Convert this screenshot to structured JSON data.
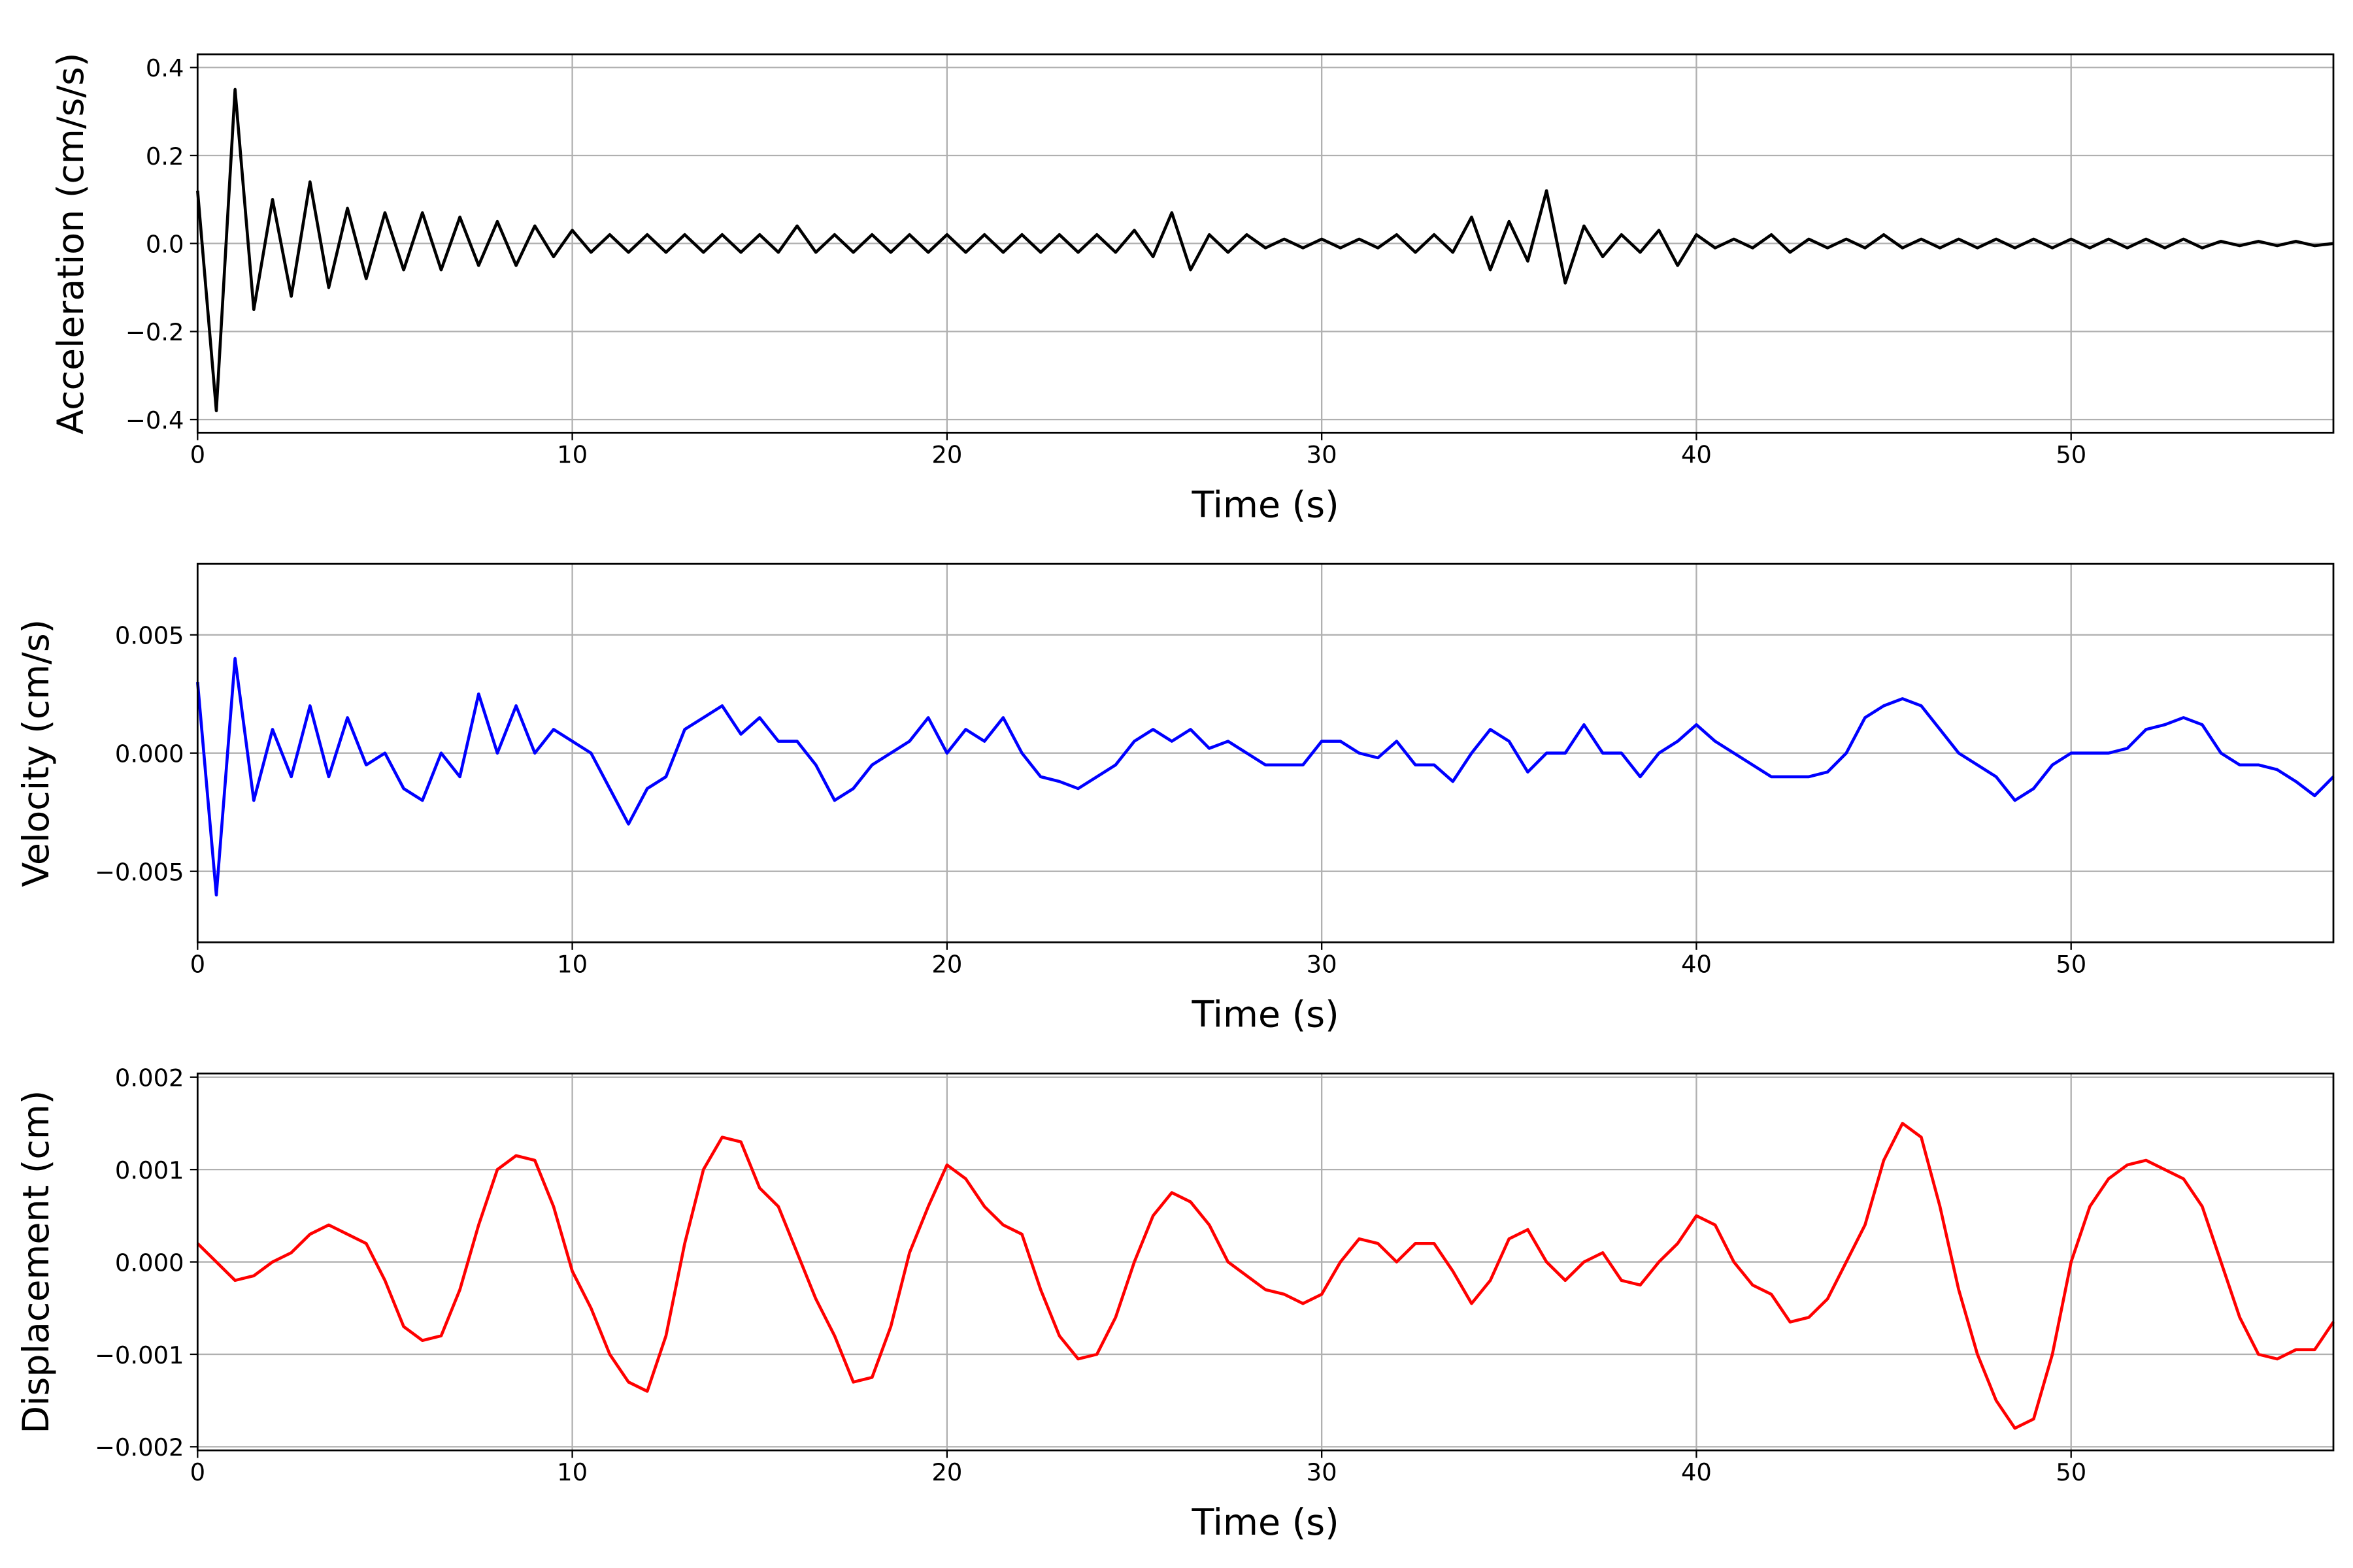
{
  "chart_data": [
    {
      "type": "line",
      "xlabel": "Time (s)",
      "ylabel": "Acceleration (cm/s/s)",
      "color": "#000000",
      "grid": true,
      "xlim": [
        0,
        57
      ],
      "xticks": [
        0,
        10,
        20,
        30,
        40,
        50
      ],
      "ylim": [
        -0.43,
        0.43
      ],
      "yticks": [
        {
          "value": 0.4,
          "label": "0.4"
        },
        {
          "value": 0.2,
          "label": "0.2"
        },
        {
          "value": 0,
          "label": "0.0"
        },
        {
          "value": -0.2,
          "label": "−0.2"
        },
        {
          "value": -0.4,
          "label": "−0.4"
        }
      ],
      "x": [
        0,
        0.5,
        1,
        1.5,
        2,
        2.5,
        3,
        3.5,
        4,
        4.5,
        5,
        5.5,
        6,
        6.5,
        7,
        7.5,
        8,
        8.5,
        9,
        9.5,
        10,
        10.5,
        11,
        11.5,
        12,
        12.5,
        13,
        13.5,
        14,
        14.5,
        15,
        15.5,
        16,
        16.5,
        17,
        17.5,
        18,
        18.5,
        19,
        19.5,
        20,
        20.5,
        21,
        21.5,
        22,
        22.5,
        23,
        23.5,
        24,
        24.5,
        25,
        25.5,
        26,
        26.5,
        27,
        27.5,
        28,
        28.5,
        29,
        29.5,
        30,
        30.5,
        31,
        31.5,
        32,
        32.5,
        33,
        33.5,
        34,
        34.5,
        35,
        35.5,
        36,
        36.5,
        37,
        37.5,
        38,
        38.5,
        39,
        39.5,
        40,
        40.5,
        41,
        41.5,
        42,
        42.5,
        43,
        43.5,
        44,
        44.5,
        45,
        45.5,
        46,
        46.5,
        47,
        47.5,
        48,
        48.5,
        49,
        49.5,
        50,
        50.5,
        51,
        51.5,
        52,
        52.5,
        53,
        53.5,
        54,
        54.5,
        55,
        55.5,
        56,
        56.5,
        57
      ],
      "values": [
        0.12,
        -0.38,
        0.35,
        -0.15,
        0.1,
        -0.12,
        0.14,
        -0.1,
        0.08,
        -0.08,
        0.07,
        -0.06,
        0.07,
        -0.06,
        0.06,
        -0.05,
        0.05,
        -0.05,
        0.04,
        -0.03,
        0.03,
        -0.02,
        0.02,
        -0.02,
        0.02,
        -0.02,
        0.02,
        -0.02,
        0.02,
        -0.02,
        0.02,
        -0.02,
        0.04,
        -0.02,
        0.02,
        -0.02,
        0.02,
        -0.02,
        0.02,
        -0.02,
        0.02,
        -0.02,
        0.02,
        -0.02,
        0.02,
        -0.02,
        0.02,
        -0.02,
        0.02,
        -0.02,
        0.03,
        -0.03,
        0.07,
        -0.06,
        0.02,
        -0.02,
        0.02,
        -0.01,
        0.01,
        -0.01,
        0.01,
        -0.01,
        0.01,
        -0.01,
        0.02,
        -0.02,
        0.02,
        -0.02,
        0.06,
        -0.06,
        0.05,
        -0.04,
        0.12,
        -0.09,
        0.04,
        -0.03,
        0.02,
        -0.02,
        0.03,
        -0.05,
        0.02,
        -0.01,
        0.01,
        -0.01,
        0.02,
        -0.02,
        0.01,
        -0.01,
        0.01,
        -0.01,
        0.02,
        -0.01,
        0.01,
        -0.01,
        0.01,
        -0.01,
        0.01,
        -0.01,
        0.01,
        -0.01,
        0.01,
        -0.01,
        0.01,
        -0.01,
        0.01,
        -0.01,
        0.01,
        -0.01,
        0.005,
        -0.005,
        0.005,
        -0.005,
        0.005,
        -0.005,
        0
      ]
    },
    {
      "type": "line",
      "xlabel": "Time (s)",
      "ylabel": "Velocity (cm/s)",
      "color": "#0000ff",
      "grid": true,
      "xlim": [
        0,
        57
      ],
      "xticks": [
        0,
        10,
        20,
        30,
        40,
        50
      ],
      "ylim": [
        -0.008,
        0.008
      ],
      "yticks": [
        {
          "value": 0.005,
          "label": "0.005"
        },
        {
          "value": 0,
          "label": "0.000"
        },
        {
          "value": -0.005,
          "label": "−0.005"
        }
      ],
      "x": [
        0,
        0.5,
        1,
        1.5,
        2,
        2.5,
        3,
        3.5,
        4,
        4.5,
        5,
        5.5,
        6,
        6.5,
        7,
        7.5,
        8,
        8.5,
        9,
        9.5,
        10,
        10.5,
        11,
        11.5,
        12,
        12.5,
        13,
        13.5,
        14,
        14.5,
        15,
        15.5,
        16,
        16.5,
        17,
        17.5,
        18,
        18.5,
        19,
        19.5,
        20,
        20.5,
        21,
        21.5,
        22,
        22.5,
        23,
        23.5,
        24,
        24.5,
        25,
        25.5,
        26,
        26.5,
        27,
        27.5,
        28,
        28.5,
        29,
        29.5,
        30,
        30.5,
        31,
        31.5,
        32,
        32.5,
        33,
        33.5,
        34,
        34.5,
        35,
        35.5,
        36,
        36.5,
        37,
        37.5,
        38,
        38.5,
        39,
        39.5,
        40,
        40.5,
        41,
        41.5,
        42,
        42.5,
        43,
        43.5,
        44,
        44.5,
        45,
        45.5,
        46,
        46.5,
        47,
        47.5,
        48,
        48.5,
        49,
        49.5,
        50,
        50.5,
        51,
        51.5,
        52,
        52.5,
        53,
        53.5,
        54,
        54.5,
        55,
        55.5,
        56,
        56.5,
        57
      ],
      "values": [
        0.003,
        -0.006,
        0.004,
        -0.002,
        0.001,
        -0.001,
        0.002,
        -0.001,
        0.0015,
        -0.0005,
        0,
        -0.0015,
        -0.002,
        0,
        -0.001,
        0.0025,
        0,
        0.002,
        0,
        0.001,
        0.0005,
        0,
        -0.0015,
        -0.003,
        -0.0015,
        -0.001,
        0.001,
        0.0015,
        0.002,
        0.0008,
        0.0015,
        0.0005,
        0.0005,
        -0.0005,
        -0.002,
        -0.0015,
        -0.0005,
        0,
        0.0005,
        0.0015,
        0,
        0.001,
        0.0005,
        0.0015,
        0,
        -0.001,
        -0.0012,
        -0.0015,
        -0.001,
        -0.0005,
        0.0005,
        0.001,
        0.0005,
        0.001,
        0.0002,
        0.0005,
        0,
        -0.0005,
        -0.0005,
        -0.0005,
        0.0005,
        0.0005,
        0,
        -0.0002,
        0.0005,
        -0.0005,
        -0.0005,
        -0.0012,
        0,
        0.001,
        0.0005,
        -0.0008,
        0,
        0,
        0.0012,
        0,
        0,
        -0.001,
        0,
        0.0005,
        0.0012,
        0.0005,
        0,
        -0.0005,
        -0.001,
        -0.001,
        -0.001,
        -0.0008,
        0,
        0.0015,
        0.002,
        0.0023,
        0.002,
        0.001,
        0,
        -0.0005,
        -0.001,
        -0.002,
        -0.0015,
        -0.0005,
        0,
        0,
        0,
        0.0002,
        0.001,
        0.0012,
        0.0015,
        0.0012,
        0,
        -0.0005,
        -0.0005,
        -0.0007,
        -0.0012,
        -0.0018,
        -0.001
      ]
    },
    {
      "type": "line",
      "xlabel": "Time (s)",
      "ylabel": "Displacement (cm)",
      "color": "#ff0000",
      "grid": true,
      "xlim": [
        0,
        57
      ],
      "xticks": [
        0,
        10,
        20,
        30,
        40,
        50
      ],
      "ylim": [
        -0.00204,
        0.00204
      ],
      "yticks": [
        0.002,
        {
          "value": 0.001,
          "label": "0.001"
        },
        {
          "value": 0,
          "label": "0.000"
        },
        {
          "value": -0.001,
          "label": "−0.001"
        },
        {
          "value": -0.002,
          "label": "−0.002"
        }
      ],
      "x": [
        0,
        0.5,
        1,
        1.5,
        2,
        2.5,
        3,
        3.5,
        4,
        4.5,
        5,
        5.5,
        6,
        6.5,
        7,
        7.5,
        8,
        8.5,
        9,
        9.5,
        10,
        10.5,
        11,
        11.5,
        12,
        12.5,
        13,
        13.5,
        14,
        14.5,
        15,
        15.5,
        16,
        16.5,
        17,
        17.5,
        18,
        18.5,
        19,
        19.5,
        20,
        20.5,
        21,
        21.5,
        22,
        22.5,
        23,
        23.5,
        24,
        24.5,
        25,
        25.5,
        26,
        26.5,
        27,
        27.5,
        28,
        28.5,
        29,
        29.5,
        30,
        30.5,
        31,
        31.5,
        32,
        32.5,
        33,
        33.5,
        34,
        34.5,
        35,
        35.5,
        36,
        36.5,
        37,
        37.5,
        38,
        38.5,
        39,
        39.5,
        40,
        40.5,
        41,
        41.5,
        42,
        42.5,
        43,
        43.5,
        44,
        44.5,
        45,
        45.5,
        46,
        46.5,
        47,
        47.5,
        48,
        48.5,
        49,
        49.5,
        50,
        50.5,
        51,
        51.5,
        52,
        52.5,
        53,
        53.5,
        54,
        54.5,
        55,
        55.5,
        56,
        56.5,
        57
      ],
      "values": [
        0.0002,
        0,
        -0.0002,
        -0.00015,
        0,
        0.0001,
        0.0003,
        0.0004,
        0.0003,
        0.0002,
        -0.0002,
        -0.0007,
        -0.00085,
        -0.0008,
        -0.0003,
        0.0004,
        0.001,
        0.00115,
        0.0011,
        0.0006,
        -0.0001,
        -0.0005,
        -0.001,
        -0.0013,
        -0.0014,
        -0.0008,
        0.0002,
        0.001,
        0.00135,
        0.0013,
        0.0008,
        0.0006,
        0.0001,
        -0.0004,
        -0.0008,
        -0.0013,
        -0.00125,
        -0.0007,
        0.0001,
        0.0006,
        0.00105,
        0.0009,
        0.0006,
        0.0004,
        0.0003,
        -0.0003,
        -0.0008,
        -0.00105,
        -0.001,
        -0.0006,
        0,
        0.0005,
        0.00075,
        0.00065,
        0.0004,
        0,
        -0.00015,
        -0.0003,
        -0.00035,
        -0.00045,
        -0.00035,
        0,
        0.00025,
        0.0002,
        0,
        0.0002,
        0.0002,
        -0.0001,
        -0.00045,
        -0.0002,
        0.00025,
        0.00035,
        0,
        -0.0002,
        0,
        0.0001,
        -0.0002,
        -0.00025,
        0,
        0.0002,
        0.0005,
        0.0004,
        0,
        -0.00025,
        -0.00035,
        -0.00065,
        -0.0006,
        -0.0004,
        0,
        0.0004,
        0.0011,
        0.0015,
        0.00135,
        0.0006,
        -0.0003,
        -0.001,
        -0.0015,
        -0.0018,
        -0.0017,
        -0.001,
        0,
        0.0006,
        0.0009,
        0.00105,
        0.0011,
        0.001,
        0.0009,
        0.0006,
        0,
        -0.0006,
        -0.001,
        -0.00105,
        -0.00095,
        -0.00095,
        -0.00065
      ]
    }
  ]
}
